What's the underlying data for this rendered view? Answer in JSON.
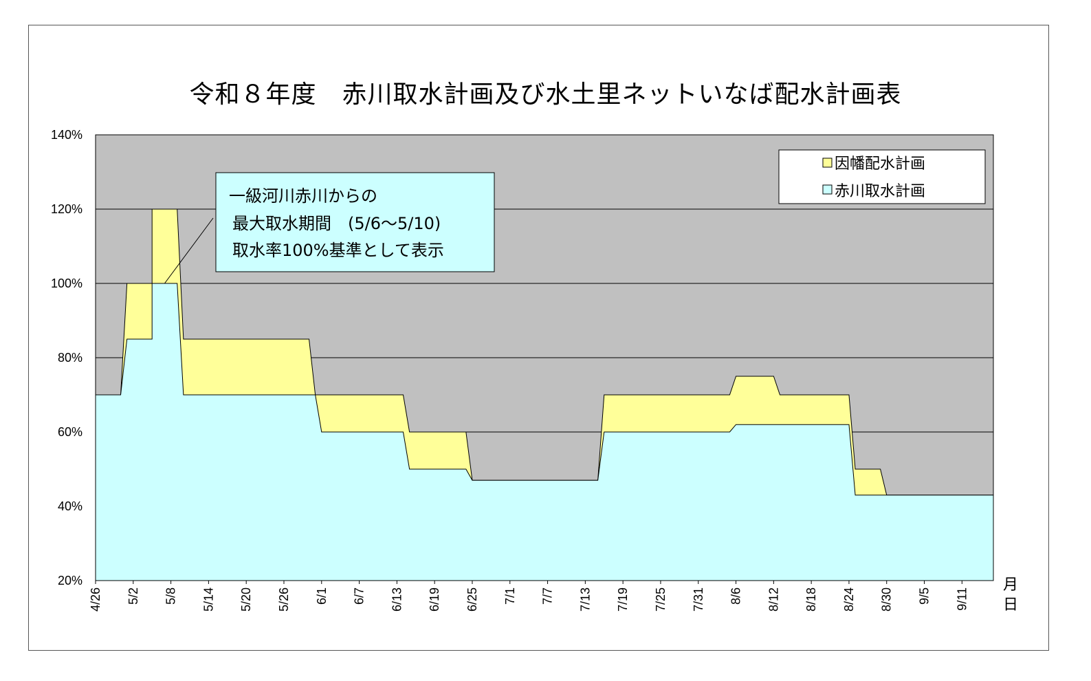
{
  "chart_data": {
    "type": "area",
    "title": "令和８年度　赤川取水計画及び水土里ネットいなば配水計画表",
    "xlabel": "月日",
    "xlabel_chars": [
      "月",
      "日"
    ],
    "ylim": [
      20,
      140
    ],
    "yticks": [
      20,
      40,
      60,
      80,
      100,
      120,
      140
    ],
    "ytick_labels": [
      "20%",
      "40%",
      "60%",
      "80%",
      "100%",
      "120%",
      "140%"
    ],
    "grid": true,
    "legend_position": "top-right",
    "x_start": "4/26",
    "x_end": "9/16",
    "x_tick_labels": [
      "4/26",
      "5/2",
      "5/8",
      "5/14",
      "5/20",
      "5/26",
      "6/1",
      "6/7",
      "6/13",
      "6/19",
      "6/25",
      "7/1",
      "7/7",
      "7/13",
      "7/19",
      "7/25",
      "7/31",
      "8/6",
      "8/12",
      "8/18",
      "8/24",
      "8/30",
      "9/5",
      "9/11"
    ],
    "series": [
      {
        "name": "因幡配水計画",
        "color": "#FFFF99",
        "points": [
          [
            "4/26",
            70
          ],
          [
            "4/30",
            70
          ],
          [
            "5/1",
            100
          ],
          [
            "5/5",
            100
          ],
          [
            "5/5",
            120
          ],
          [
            "5/9",
            120
          ],
          [
            "5/10",
            85
          ],
          [
            "5/30",
            85
          ],
          [
            "5/31",
            70
          ],
          [
            "6/14",
            70
          ],
          [
            "6/15",
            60
          ],
          [
            "6/24",
            60
          ],
          [
            "6/25",
            47
          ],
          [
            "7/15",
            47
          ],
          [
            "7/16",
            70
          ],
          [
            "8/5",
            70
          ],
          [
            "8/6",
            75
          ],
          [
            "8/12",
            75
          ],
          [
            "8/13",
            70
          ],
          [
            "8/24",
            70
          ],
          [
            "8/25",
            50
          ],
          [
            "8/29",
            50
          ],
          [
            "8/30",
            43
          ],
          [
            "9/16",
            43
          ]
        ]
      },
      {
        "name": "赤川取水計画",
        "color": "#CCFFFF",
        "points": [
          [
            "4/26",
            70
          ],
          [
            "4/30",
            70
          ],
          [
            "5/1",
            85
          ],
          [
            "5/5",
            85
          ],
          [
            "5/5",
            100
          ],
          [
            "5/9",
            100
          ],
          [
            "5/10",
            70
          ],
          [
            "5/31",
            70
          ],
          [
            "6/1",
            60
          ],
          [
            "6/14",
            60
          ],
          [
            "6/15",
            50
          ],
          [
            "6/24",
            50
          ],
          [
            "6/25",
            47
          ],
          [
            "7/15",
            47
          ],
          [
            "7/16",
            60
          ],
          [
            "8/5",
            60
          ],
          [
            "8/6",
            62
          ],
          [
            "8/24",
            62
          ],
          [
            "8/25",
            43
          ],
          [
            "9/16",
            43
          ]
        ]
      }
    ],
    "annotation": {
      "lines": [
        "一級河川赤川からの",
        "最大取水期間　(5/6～5/10)",
        "取水率100%基準として表示"
      ],
      "target_date": "5/7",
      "target_value": 100
    }
  },
  "colors": {
    "plot_background": "#C0C0C0",
    "annotation_fill": "#CCFFFF",
    "border": "#000000"
  }
}
